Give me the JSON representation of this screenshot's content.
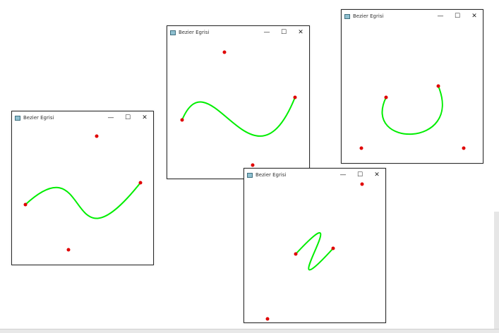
{
  "windows": [
    {
      "title": "Bezier Egrisi",
      "controls": {
        "minimize": "—",
        "maximize": "☐",
        "close": "✕"
      },
      "curve_color": "#00ee00",
      "point_color": "#e00000",
      "icon": "app-window-icon"
    },
    {
      "title": "Bezier Egrisi",
      "controls": {
        "minimize": "—",
        "maximize": "☐",
        "close": "✕"
      },
      "curve_color": "#00ee00",
      "point_color": "#e00000",
      "icon": "app-window-icon"
    },
    {
      "title": "Bezier Egrisi",
      "controls": {
        "minimize": "—",
        "maximize": "☐",
        "close": "✕"
      },
      "curve_color": "#00ee00",
      "point_color": "#e00000",
      "icon": "app-window-icon"
    },
    {
      "title": "Bezier Egrisi",
      "controls": {
        "minimize": "—",
        "maximize": "☐",
        "close": "✕"
      },
      "curve_color": "#00ee00",
      "point_color": "#e00000",
      "icon": "app-window-icon"
    }
  ]
}
